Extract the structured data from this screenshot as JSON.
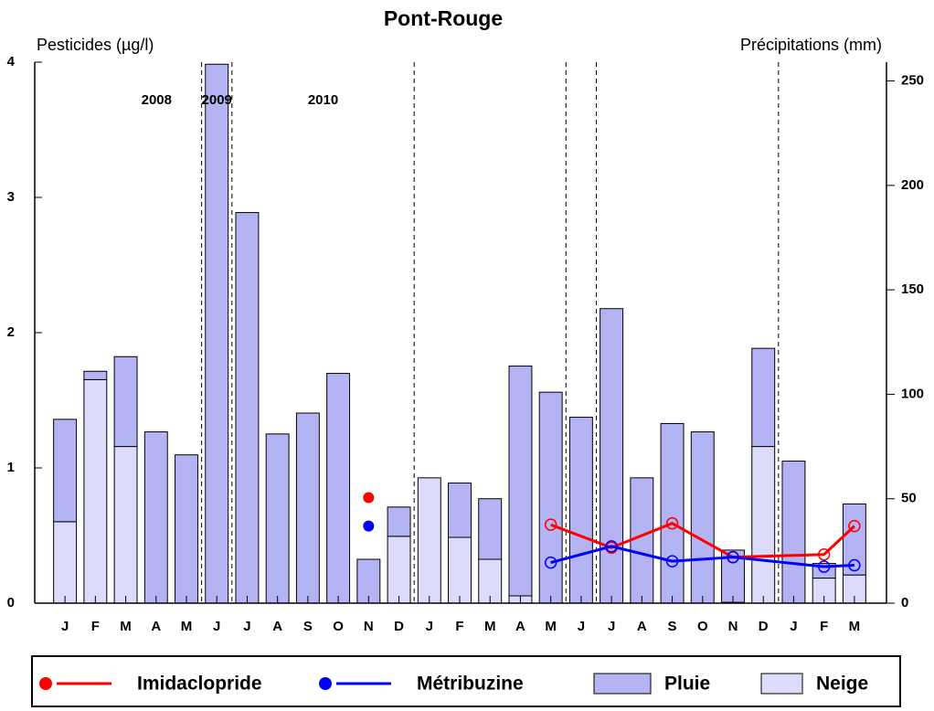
{
  "chart_data": {
    "type": "bar",
    "title": "Pont-Rouge",
    "y_label": "Pesticides (µg/l)",
    "y2_label": "Précipitations (mm)",
    "categories": [
      "J",
      "F",
      "M",
      "A",
      "M",
      "J",
      "J",
      "A",
      "S",
      "O",
      "N",
      "D",
      "J",
      "F",
      "M",
      "A",
      "M",
      "J",
      "J",
      "A",
      "S",
      "O",
      "N",
      "D",
      "J",
      "F",
      "M"
    ],
    "year_labels": [
      "2008",
      "2009",
      "2010"
    ],
    "ylim": [
      0,
      4
    ],
    "yticks": [
      0,
      1,
      2,
      3,
      4
    ],
    "y2lim": [
      0,
      259
    ],
    "y2ticks": [
      0,
      50,
      100,
      150,
      200,
      250
    ],
    "connect_gaps": true,
    "series": [
      {
        "name": "Imidaclopride",
        "type": "line",
        "color": "#ff0000",
        "axis": "y",
        "values": [
          null,
          null,
          null,
          null,
          null,
          null,
          null,
          null,
          null,
          null,
          null,
          null,
          null,
          null,
          null,
          null,
          0.58,
          null,
          0.41,
          null,
          0.59,
          null,
          0.34,
          null,
          null,
          0.36,
          0.57
        ]
      },
      {
        "name": "Métribuzine",
        "type": "line",
        "color": "#0000ff",
        "axis": "y",
        "values": [
          null,
          null,
          null,
          null,
          null,
          null,
          null,
          null,
          null,
          null,
          null,
          null,
          null,
          null,
          null,
          null,
          0.3,
          null,
          0.42,
          null,
          0.31,
          null,
          0.34,
          null,
          null,
          0.27,
          0.28
        ]
      },
      {
        "name": "Pluie",
        "type": "bar",
        "color": "#b4b4f4",
        "axis": "y2",
        "values": [
          49,
          4,
          43,
          82,
          71,
          258,
          187,
          81,
          91,
          110,
          21,
          14,
          0,
          26,
          29,
          110,
          101,
          89,
          141,
          60,
          86,
          82,
          25,
          47,
          68,
          7,
          34
        ]
      },
      {
        "name": "Neige",
        "type": "bar",
        "color": "#dcdcfa",
        "axis": "y2",
        "values": [
          39,
          107,
          75,
          0,
          0,
          0,
          0,
          0,
          0,
          0,
          0,
          32,
          60,
          31.5,
          21,
          3.5,
          0,
          0,
          0,
          0,
          0,
          0,
          0.4,
          75,
          0,
          12,
          13.5
        ]
      },
      {
        "type": "point",
        "color": "#ff0000",
        "axis": "y",
        "values": [
          null,
          null,
          null,
          null,
          null,
          null,
          null,
          null,
          null,
          null,
          0.78,
          null,
          null,
          null,
          null,
          null,
          null,
          null,
          null,
          null,
          null,
          null,
          null,
          null,
          null,
          null,
          null
        ]
      },
      {
        "type": "point",
        "color": "#0000ff",
        "axis": "y",
        "values": [
          null,
          null,
          null,
          null,
          null,
          null,
          null,
          null,
          null,
          null,
          0.57,
          null,
          null,
          null,
          null,
          null,
          null,
          null,
          null,
          null,
          null,
          null,
          null,
          null,
          null,
          null,
          null
        ]
      }
    ]
  }
}
